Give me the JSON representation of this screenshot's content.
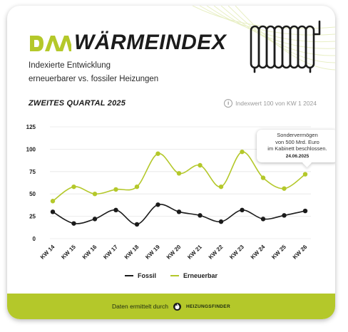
{
  "header": {
    "logo_text": "DAA",
    "title": "WÄRMEINDEX",
    "subtitle_line1": "Indexierte Entwicklung",
    "subtitle_line2": "erneuerbarer vs. fossiler Heizungen",
    "period": "ZWEITES QUARTAL 2025",
    "index_note": "Indexwert 100 von KW 1 2024",
    "info_icon": "info-icon"
  },
  "colors": {
    "fossil": "#1b1b1b",
    "renewable": "#b4c82a",
    "footer_bg": "#b4c82a",
    "logo": "#b4c82a"
  },
  "tooltip": {
    "line1": "Sondervermögen",
    "line2": "von 500 Mrd. Euro",
    "line3": "im Kabinett beschlossen.",
    "date": "24.06.2025"
  },
  "footer": {
    "text": "Daten ermittelt durch",
    "brand": "HEIZUNGSFINDER",
    "brand_icon": "flame-icon"
  },
  "chart_data": {
    "type": "line",
    "categories": [
      "KW 14",
      "KW 15",
      "KW 16",
      "KW 17",
      "KW 18",
      "KW 19",
      "KW 20",
      "KW 21",
      "KW 22",
      "KW 23",
      "KW 24",
      "KW 25",
      "KW 26"
    ],
    "series": [
      {
        "name": "Fossil",
        "values": [
          30,
          17,
          22,
          32,
          16,
          38,
          30,
          26,
          19,
          32,
          22,
          26,
          31
        ]
      },
      {
        "name": "Erneuerbar",
        "values": [
          42,
          58,
          50,
          55,
          58,
          95,
          73,
          82,
          58,
          97,
          68,
          56,
          72
        ]
      }
    ],
    "yticks": [
      "0",
      "25",
      "50",
      "75",
      "100",
      "125"
    ],
    "ylim": [
      0,
      125
    ],
    "grid": true,
    "legend_position": "bottom-center"
  }
}
